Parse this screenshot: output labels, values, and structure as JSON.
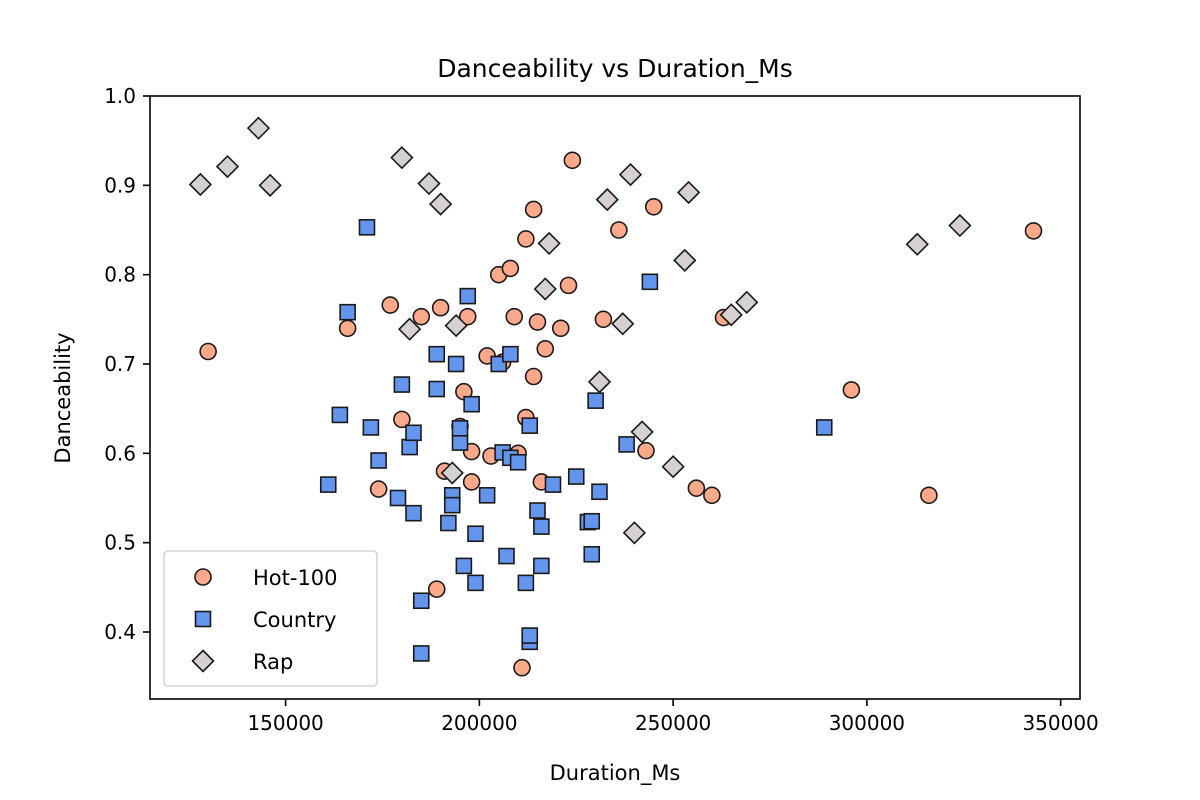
{
  "chart_data": {
    "type": "scatter",
    "title": "Danceability vs Duration_Ms",
    "xlabel": "Duration_Ms",
    "ylabel": "Danceability",
    "xlim": [
      115000,
      355000
    ],
    "ylim": [
      0.325,
      1.0
    ],
    "xticks": [
      150000,
      200000,
      250000,
      300000,
      350000
    ],
    "xtick_labels": [
      "150000",
      "200000",
      "250000",
      "300000",
      "350000"
    ],
    "yticks": [
      0.4,
      0.5,
      0.6,
      0.7,
      0.8,
      0.9,
      1.0
    ],
    "ytick_labels": [
      "0.4",
      "0.5",
      "0.6",
      "0.7",
      "0.8",
      "0.9",
      "1.0"
    ],
    "grid": false,
    "legend_position": "lower-left",
    "series": [
      {
        "name": "Hot-100",
        "marker": "circle",
        "color": "#FCA98B",
        "points": [
          [
            130000,
            0.714
          ],
          [
            166000,
            0.74
          ],
          [
            174000,
            0.56
          ],
          [
            177000,
            0.766
          ],
          [
            180000,
            0.638
          ],
          [
            185000,
            0.753
          ],
          [
            189000,
            0.448
          ],
          [
            190000,
            0.763
          ],
          [
            191000,
            0.58
          ],
          [
            195000,
            0.63
          ],
          [
            196000,
            0.669
          ],
          [
            197000,
            0.753
          ],
          [
            198000,
            0.602
          ],
          [
            198000,
            0.568
          ],
          [
            202000,
            0.709
          ],
          [
            203000,
            0.597
          ],
          [
            205000,
            0.8
          ],
          [
            206000,
            0.702
          ],
          [
            208000,
            0.807
          ],
          [
            209000,
            0.753
          ],
          [
            210000,
            0.6
          ],
          [
            211000,
            0.36
          ],
          [
            212000,
            0.84
          ],
          [
            212000,
            0.64
          ],
          [
            214000,
            0.873
          ],
          [
            214000,
            0.686
          ],
          [
            215000,
            0.747
          ],
          [
            216000,
            0.568
          ],
          [
            217000,
            0.717
          ],
          [
            221000,
            0.74
          ],
          [
            223000,
            0.788
          ],
          [
            224000,
            0.928
          ],
          [
            232000,
            0.75
          ],
          [
            236000,
            0.85
          ],
          [
            243000,
            0.603
          ],
          [
            245000,
            0.876
          ],
          [
            256000,
            0.561
          ],
          [
            260000,
            0.553
          ],
          [
            263000,
            0.752
          ],
          [
            296000,
            0.671
          ],
          [
            316000,
            0.553
          ],
          [
            343000,
            0.849
          ]
        ]
      },
      {
        "name": "Country",
        "marker": "square",
        "color": "#6495ED",
        "points": [
          [
            161000,
            0.565
          ],
          [
            164000,
            0.643
          ],
          [
            166000,
            0.758
          ],
          [
            171000,
            0.853
          ],
          [
            172000,
            0.629
          ],
          [
            174000,
            0.592
          ],
          [
            179000,
            0.55
          ],
          [
            180000,
            0.677
          ],
          [
            182000,
            0.607
          ],
          [
            183000,
            0.623
          ],
          [
            183000,
            0.533
          ],
          [
            185000,
            0.435
          ],
          [
            185000,
            0.376
          ],
          [
            189000,
            0.672
          ],
          [
            189000,
            0.711
          ],
          [
            192000,
            0.522
          ],
          [
            193000,
            0.553
          ],
          [
            193000,
            0.542
          ],
          [
            194000,
            0.7
          ],
          [
            195000,
            0.612
          ],
          [
            195000,
            0.628
          ],
          [
            196000,
            0.474
          ],
          [
            197000,
            0.776
          ],
          [
            198000,
            0.655
          ],
          [
            199000,
            0.455
          ],
          [
            199000,
            0.51
          ],
          [
            202000,
            0.553
          ],
          [
            205000,
            0.7
          ],
          [
            206000,
            0.601
          ],
          [
            207000,
            0.485
          ],
          [
            208000,
            0.595
          ],
          [
            208000,
            0.711
          ],
          [
            210000,
            0.59
          ],
          [
            212000,
            0.455
          ],
          [
            213000,
            0.631
          ],
          [
            213000,
            0.389
          ],
          [
            213000,
            0.396
          ],
          [
            215000,
            0.536
          ],
          [
            216000,
            0.474
          ],
          [
            216000,
            0.518
          ],
          [
            219000,
            0.565
          ],
          [
            225000,
            0.574
          ],
          [
            228000,
            0.523
          ],
          [
            229000,
            0.487
          ],
          [
            229000,
            0.524
          ],
          [
            230000,
            0.659
          ],
          [
            231000,
            0.557
          ],
          [
            238000,
            0.61
          ],
          [
            244000,
            0.792
          ],
          [
            289000,
            0.629
          ]
        ]
      },
      {
        "name": "Rap",
        "marker": "diamond",
        "color": "#D6D1D1",
        "points": [
          [
            128000,
            0.901
          ],
          [
            135000,
            0.921
          ],
          [
            143000,
            0.964
          ],
          [
            146000,
            0.9
          ],
          [
            180000,
            0.931
          ],
          [
            182000,
            0.739
          ],
          [
            187000,
            0.902
          ],
          [
            190000,
            0.879
          ],
          [
            193000,
            0.578
          ],
          [
            194000,
            0.743
          ],
          [
            217000,
            0.784
          ],
          [
            218000,
            0.835
          ],
          [
            231000,
            0.68
          ],
          [
            233000,
            0.884
          ],
          [
            237000,
            0.745
          ],
          [
            239000,
            0.912
          ],
          [
            240000,
            0.511
          ],
          [
            242000,
            0.624
          ],
          [
            250000,
            0.585
          ],
          [
            253000,
            0.816
          ],
          [
            254000,
            0.892
          ],
          [
            265000,
            0.755
          ],
          [
            269000,
            0.769
          ],
          [
            313000,
            0.834
          ],
          [
            324000,
            0.855
          ]
        ]
      }
    ]
  }
}
